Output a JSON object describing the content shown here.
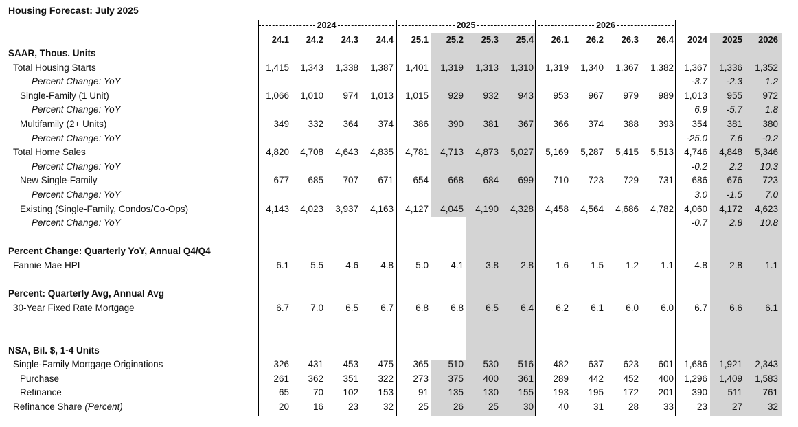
{
  "title": "Housing Forecast: July 2025",
  "years": [
    "2024",
    "2025",
    "2026"
  ],
  "columns": [
    "24.1",
    "24.2",
    "24.3",
    "24.4",
    "25.1",
    "25.2",
    "25.3",
    "25.4",
    "26.1",
    "26.2",
    "26.3",
    "26.4",
    "2024",
    "2025",
    "2026"
  ],
  "shading_color": "#d4d4d4",
  "rows": [
    {
      "type": "section",
      "label": "SAAR, Thous. Units",
      "values": []
    },
    {
      "type": "l1",
      "label": "Total Housing Starts",
      "values": [
        "1,415",
        "1,343",
        "1,338",
        "1,387",
        "1,401",
        "1,319",
        "1,313",
        "1,310",
        "1,319",
        "1,340",
        "1,367",
        "1,382",
        "1,367",
        "1,336",
        "1,352"
      ]
    },
    {
      "type": "pc",
      "label": "Percent Change: YoY",
      "values": [
        "",
        "",
        "",
        "",
        "",
        "",
        "",
        "",
        "",
        "",
        "",
        "",
        "-3.7",
        "-2.3",
        "1.2"
      ]
    },
    {
      "type": "l2",
      "label": "Single-Family (1 Unit)",
      "values": [
        "1,066",
        "1,010",
        "974",
        "1,013",
        "1,015",
        "929",
        "932",
        "943",
        "953",
        "967",
        "979",
        "989",
        "1,013",
        "955",
        "972"
      ]
    },
    {
      "type": "pc",
      "label": "Percent Change: YoY",
      "values": [
        "",
        "",
        "",
        "",
        "",
        "",
        "",
        "",
        "",
        "",
        "",
        "",
        "6.9",
        "-5.7",
        "1.8"
      ]
    },
    {
      "type": "l2",
      "label": "Multifamily (2+ Units)",
      "values": [
        "349",
        "332",
        "364",
        "374",
        "386",
        "390",
        "381",
        "367",
        "366",
        "374",
        "388",
        "393",
        "354",
        "381",
        "380"
      ]
    },
    {
      "type": "pc",
      "label": "Percent Change: YoY",
      "values": [
        "",
        "",
        "",
        "",
        "",
        "",
        "",
        "",
        "",
        "",
        "",
        "",
        "-25.0",
        "7.6",
        "-0.2"
      ]
    },
    {
      "type": "l1",
      "label": "Total Home Sales",
      "values": [
        "4,820",
        "4,708",
        "4,643",
        "4,835",
        "4,781",
        "4,713",
        "4,873",
        "5,027",
        "5,169",
        "5,287",
        "5,415",
        "5,513",
        "4,746",
        "4,848",
        "5,346"
      ]
    },
    {
      "type": "pc",
      "label": "Percent Change: YoY",
      "values": [
        "",
        "",
        "",
        "",
        "",
        "",
        "",
        "",
        "",
        "",
        "",
        "",
        "-0.2",
        "2.2",
        "10.3"
      ]
    },
    {
      "type": "l2",
      "label": "New Single-Family",
      "values": [
        "677",
        "685",
        "707",
        "671",
        "654",
        "668",
        "684",
        "699",
        "710",
        "723",
        "729",
        "731",
        "686",
        "676",
        "723"
      ]
    },
    {
      "type": "pc",
      "label": "Percent Change: YoY",
      "values": [
        "",
        "",
        "",
        "",
        "",
        "",
        "",
        "",
        "",
        "",
        "",
        "",
        "3.0",
        "-1.5",
        "7.0"
      ]
    },
    {
      "type": "l2",
      "label": "Existing (Single-Family, Condos/Co-Ops)",
      "values": [
        "4,143",
        "4,023",
        "3,937",
        "4,163",
        "4,127",
        "4,045",
        "4,190",
        "4,328",
        "4,458",
        "4,564",
        "4,686",
        "4,782",
        "4,060",
        "4,172",
        "4,623"
      ]
    },
    {
      "type": "pc",
      "label": "Percent Change: YoY",
      "values": [
        "",
        "",
        "",
        "",
        "",
        "",
        "",
        "",
        "",
        "",
        "",
        "",
        "-0.7",
        "2.8",
        "10.8"
      ]
    },
    {
      "type": "blank",
      "label": "",
      "values": []
    },
    {
      "type": "section",
      "label": "Percent Change: Quarterly YoY, Annual Q4/Q4",
      "values": []
    },
    {
      "type": "l1",
      "label": "Fannie Mae HPI",
      "values": [
        "6.1",
        "5.5",
        "4.6",
        "4.8",
        "5.0",
        "4.1",
        "3.8",
        "2.8",
        "1.6",
        "1.5",
        "1.2",
        "1.1",
        "4.8",
        "2.8",
        "1.1"
      ]
    },
    {
      "type": "blank",
      "label": "",
      "values": []
    },
    {
      "type": "section",
      "label": "Percent: Quarterly Avg, Annual Avg",
      "values": []
    },
    {
      "type": "l1",
      "label": "30-Year Fixed Rate Mortgage",
      "values": [
        "6.7",
        "7.0",
        "6.5",
        "6.7",
        "6.8",
        "6.8",
        "6.5",
        "6.4",
        "6.2",
        "6.1",
        "6.0",
        "6.0",
        "6.7",
        "6.6",
        "6.1"
      ]
    },
    {
      "type": "blank",
      "label": "",
      "values": []
    },
    {
      "type": "blank",
      "label": "",
      "values": []
    },
    {
      "type": "section",
      "label": "NSA, Bil. $, 1-4 Units",
      "values": []
    },
    {
      "type": "l1",
      "label": "Single-Family Mortgage Originations",
      "values": [
        "326",
        "431",
        "453",
        "475",
        "365",
        "510",
        "530",
        "516",
        "482",
        "637",
        "623",
        "601",
        "1,686",
        "1,921",
        "2,343"
      ]
    },
    {
      "type": "l2",
      "label": "Purchase",
      "values": [
        "261",
        "362",
        "351",
        "322",
        "273",
        "375",
        "400",
        "361",
        "289",
        "442",
        "452",
        "400",
        "1,296",
        "1,409",
        "1,583"
      ]
    },
    {
      "type": "l2",
      "label": "Refinance",
      "values": [
        "65",
        "70",
        "102",
        "153",
        "91",
        "135",
        "130",
        "155",
        "193",
        "195",
        "172",
        "201",
        "390",
        "511",
        "761"
      ]
    },
    {
      "type": "l1",
      "label": "Refinance Share",
      "label_suffix": "(Percent)",
      "values": [
        "20",
        "16",
        "23",
        "32",
        "25",
        "26",
        "25",
        "30",
        "40",
        "31",
        "28",
        "33",
        "23",
        "27",
        "32"
      ]
    }
  ]
}
